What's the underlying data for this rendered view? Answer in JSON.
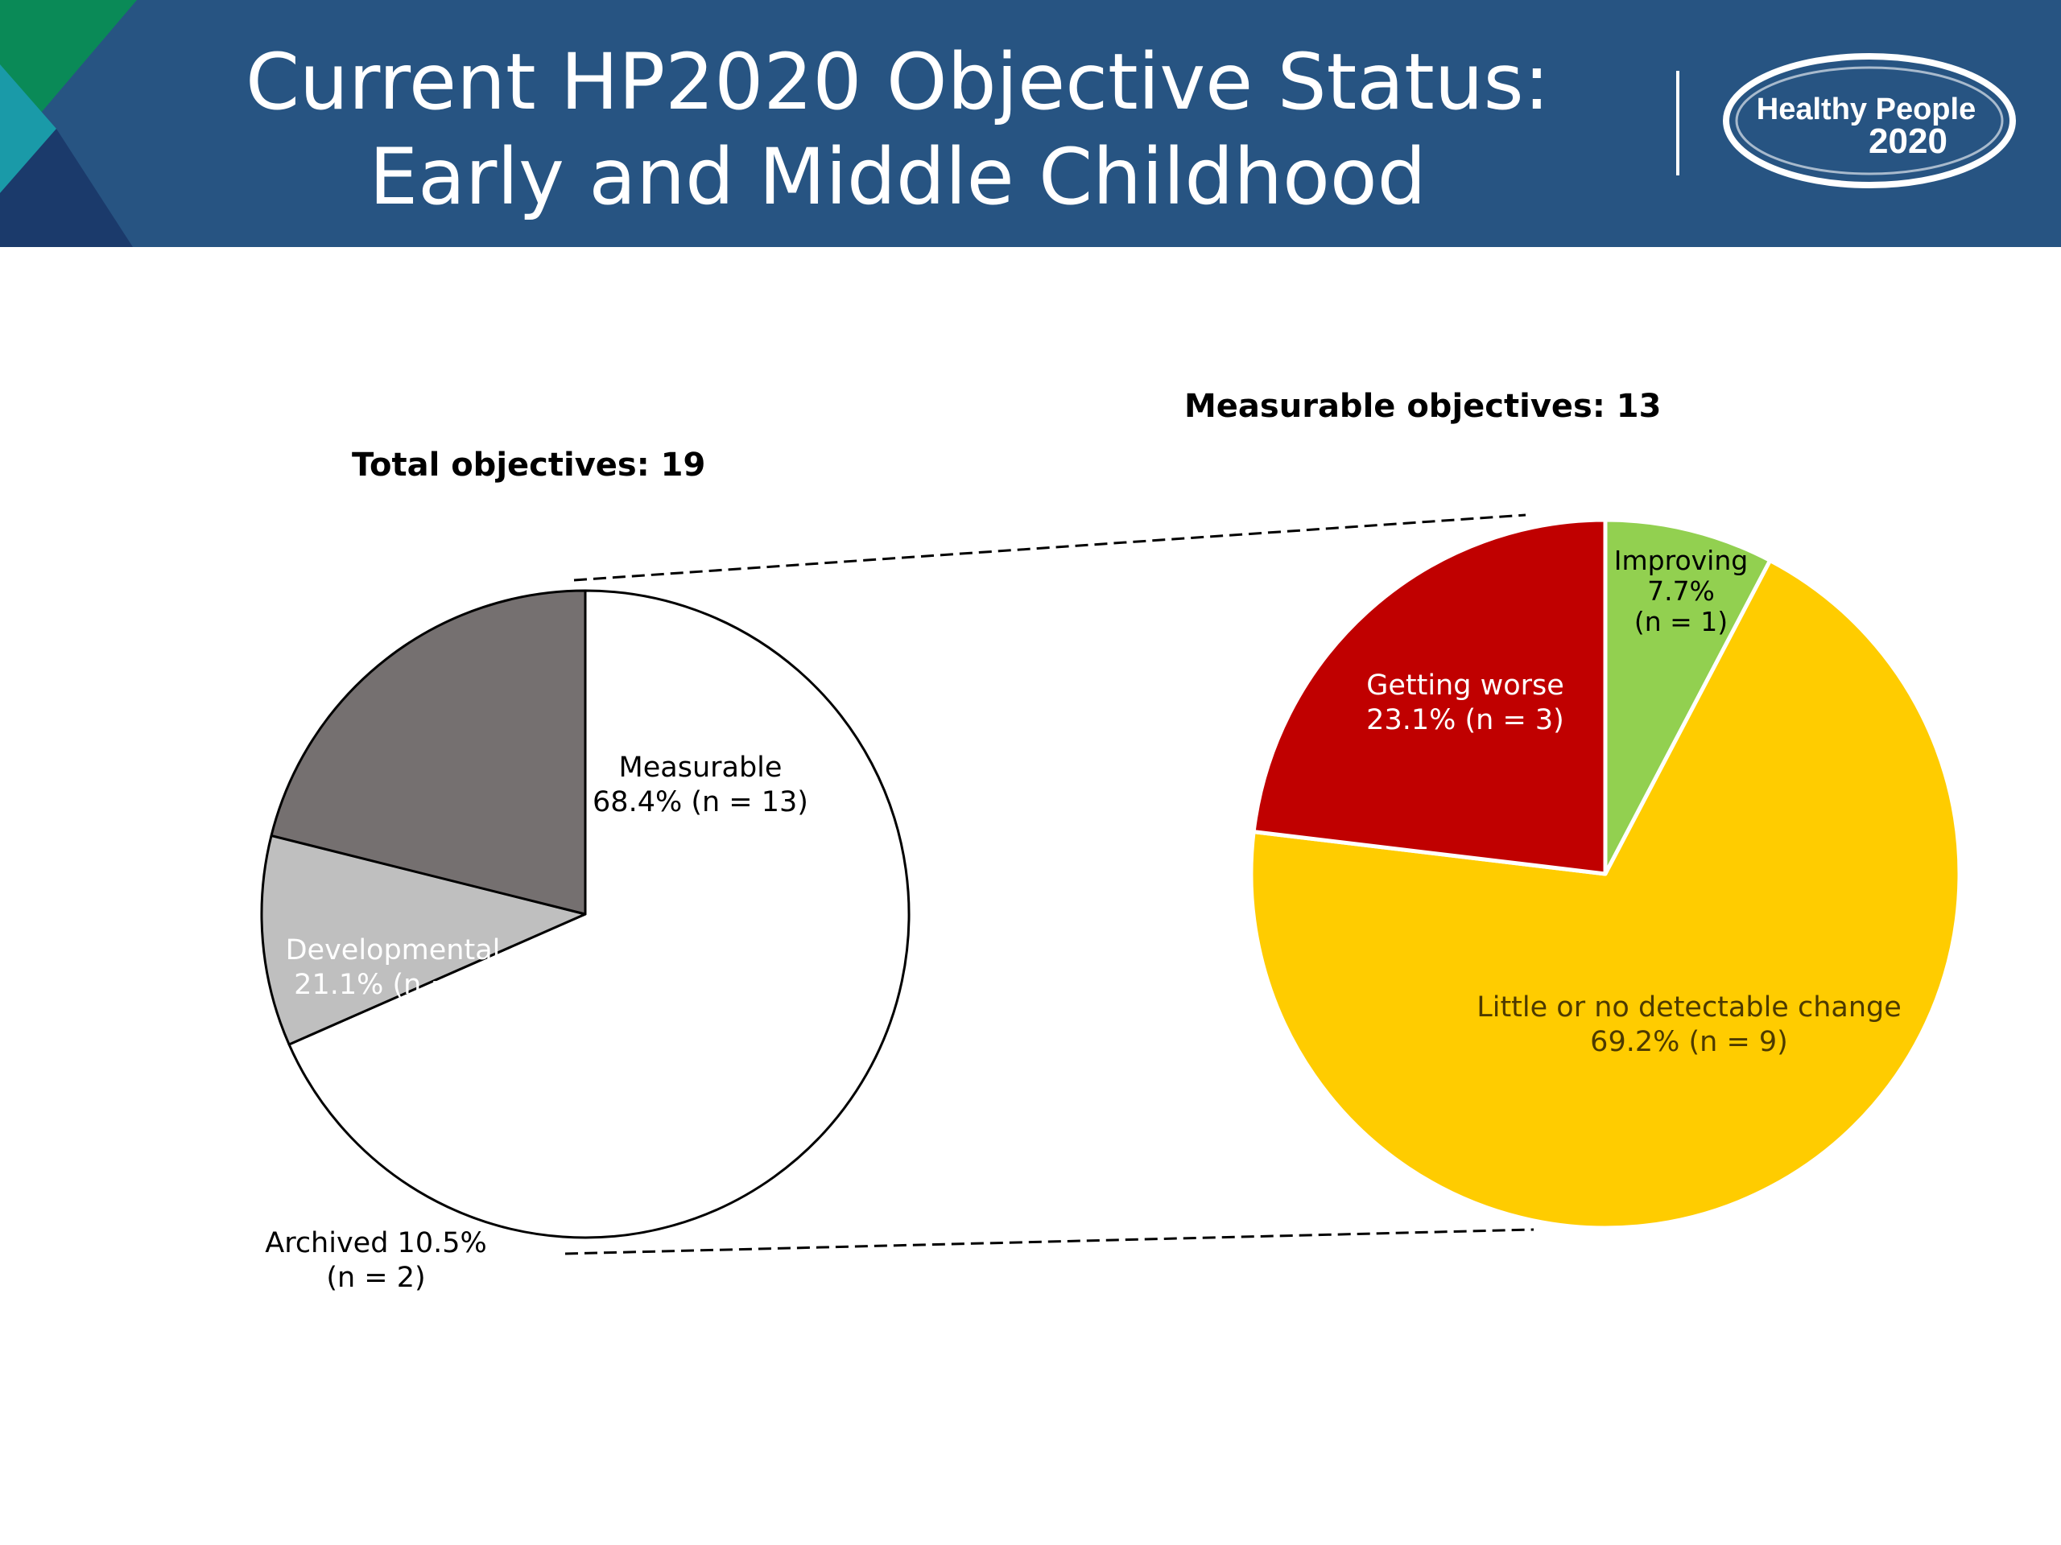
{
  "header": {
    "title_line1": "Current HP2020 Objective Status:",
    "title_line2": "Early and Middle Childhood",
    "logo_text_1": "Healthy People",
    "logo_text_2": "2020",
    "colors": {
      "banner": "#275482",
      "accent_green": "#0a8a57",
      "accent_teal": "#1a9aa8",
      "accent_navy": "#1b3a6b"
    }
  },
  "chart_data": [
    {
      "type": "pie",
      "title": "Total objectives: 19",
      "slices": [
        {
          "label": "Measurable",
          "percent": 68.4,
          "n": 13,
          "line1": "Measurable",
          "line2": "68.4% (n = 13)",
          "color": "#ffffff"
        },
        {
          "label": "Archived",
          "percent": 10.5,
          "n": 2,
          "line1": "Archived 10.5%",
          "line2": "(n = 2)",
          "color": "#bfbfbf"
        },
        {
          "label": "Developmental",
          "percent": 21.1,
          "n": 4,
          "line1": "Developmental",
          "line2": "21.1% (n = 4)",
          "color": "#757070"
        }
      ]
    },
    {
      "type": "pie",
      "title": "Measurable objectives:  13",
      "slices": [
        {
          "label": "Improving",
          "percent": 7.7,
          "n": 1,
          "line1": "Improving",
          "line2": "7.7%",
          "line3": "(n = 1)",
          "color": "#92d050"
        },
        {
          "label": "Little or no detectable change",
          "percent": 69.2,
          "n": 9,
          "line1": "Little or no detectable change",
          "line2": "69.2% (n = 9)",
          "color": "#ffcc00"
        },
        {
          "label": "Getting worse",
          "percent": 23.1,
          "n": 3,
          "line1": "Getting worse",
          "line2": "23.1% (n = 3)",
          "color": "#c00000"
        }
      ]
    }
  ]
}
